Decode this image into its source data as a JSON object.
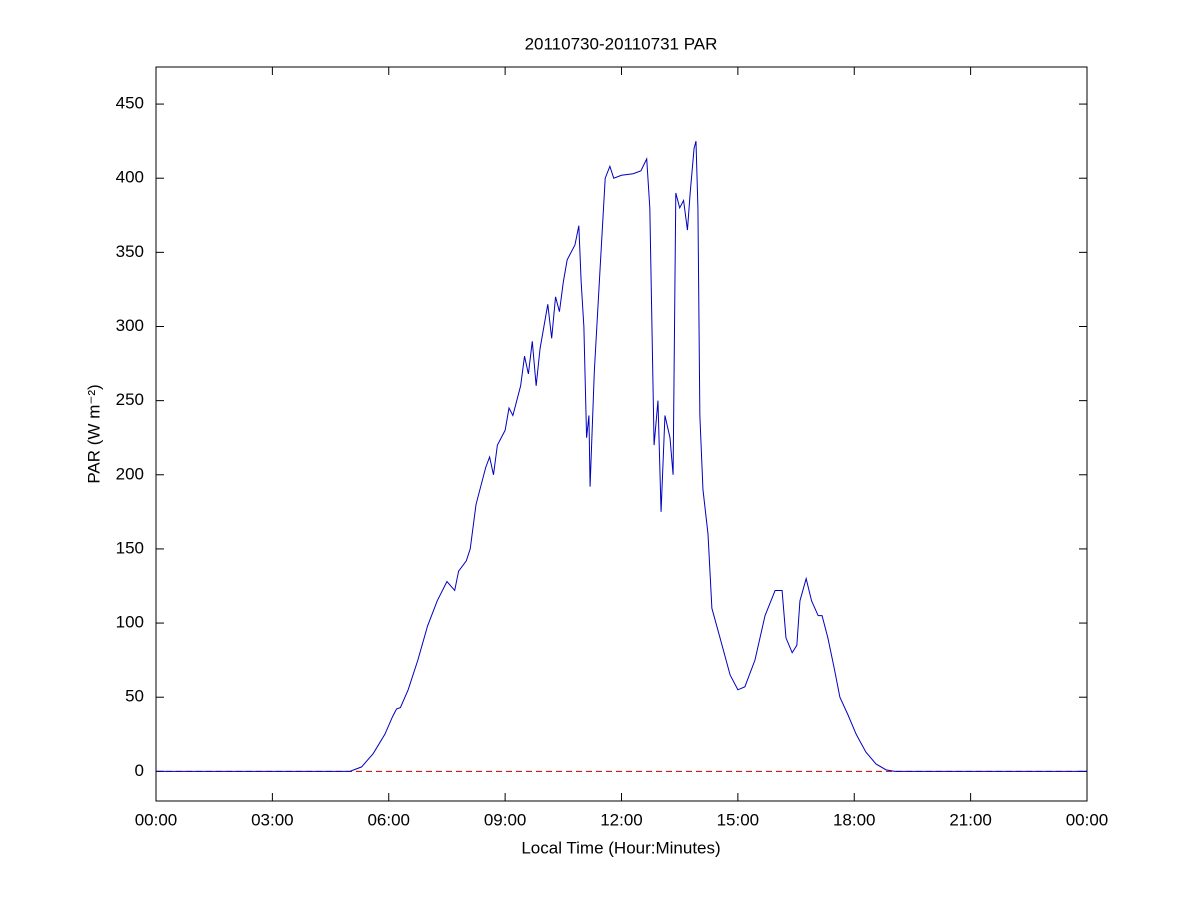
{
  "chart_data": {
    "type": "line",
    "title": "20110730-20110731 PAR",
    "x_label": "Local Time (Hour:Minutes)",
    "y_label": "PAR (W m⁻²)",
    "xlim": [
      0,
      24
    ],
    "xticks": [
      {
        "value": 0,
        "label": "00:00"
      },
      {
        "value": 3,
        "label": "03:00"
      },
      {
        "value": 6,
        "label": "06:00"
      },
      {
        "value": 9,
        "label": "09:00"
      },
      {
        "value": 12,
        "label": "12:00"
      },
      {
        "value": 15,
        "label": "15:00"
      },
      {
        "value": 18,
        "label": "18:00"
      },
      {
        "value": 21,
        "label": "21:00"
      },
      {
        "value": 24,
        "label": "00:00"
      }
    ],
    "ylim": [
      -20,
      475
    ],
    "yticks": [
      0,
      50,
      100,
      150,
      200,
      250,
      300,
      350,
      400,
      450
    ],
    "grid": false,
    "reference_lines": [
      {
        "value": 0,
        "color": "#c00000",
        "style": "dashed"
      }
    ],
    "series": [
      {
        "name": "PAR",
        "color": "#0000c0",
        "x": [
          0,
          5.0,
          5.3,
          5.6,
          5.9,
          6.1,
          6.2,
          6.3,
          6.5,
          6.75,
          7.0,
          7.25,
          7.5,
          7.7,
          7.8,
          8.0,
          8.1,
          8.25,
          8.5,
          8.6,
          8.7,
          8.8,
          9.0,
          9.1,
          9.2,
          9.4,
          9.5,
          9.6,
          9.7,
          9.8,
          9.9,
          10.0,
          10.1,
          10.2,
          10.3,
          10.4,
          10.5,
          10.6,
          10.8,
          10.9,
          10.96,
          11.03,
          11.1,
          11.16,
          11.19,
          11.3,
          11.45,
          11.58,
          11.7,
          11.8,
          12.0,
          12.3,
          12.5,
          12.65,
          12.73,
          12.84,
          12.94,
          13.02,
          13.12,
          13.25,
          13.33,
          13.4,
          13.5,
          13.6,
          13.7,
          13.77,
          13.87,
          13.92,
          13.97,
          14.02,
          14.1,
          14.23,
          14.33,
          14.54,
          14.8,
          15.0,
          15.18,
          15.44,
          15.7,
          15.96,
          16.14,
          16.24,
          16.4,
          16.52,
          16.6,
          16.76,
          16.9,
          17.07,
          17.17,
          17.32,
          17.48,
          17.63,
          17.84,
          18.05,
          18.3,
          18.56,
          18.82,
          19.05,
          24
        ],
        "values": [
          0,
          0,
          3,
          12,
          25,
          37,
          42,
          43,
          55,
          75,
          98,
          115,
          128,
          122,
          135,
          142,
          150,
          180,
          205,
          212,
          200,
          220,
          230,
          245,
          240,
          260,
          280,
          268,
          290,
          260,
          285,
          300,
          315,
          292,
          320,
          310,
          330,
          345,
          355,
          368,
          330,
          300,
          225,
          240,
          192,
          270,
          340,
          400,
          408,
          400,
          402,
          403,
          405,
          413,
          380,
          220,
          250,
          175,
          240,
          225,
          200,
          390,
          380,
          385,
          365,
          390,
          420,
          425,
          380,
          240,
          190,
          160,
          110,
          90,
          65,
          55,
          57,
          75,
          105,
          122,
          122,
          90,
          80,
          85,
          115,
          130,
          115,
          105,
          105,
          90,
          70,
          50,
          38,
          25,
          13,
          5,
          1,
          0,
          0
        ]
      }
    ]
  }
}
